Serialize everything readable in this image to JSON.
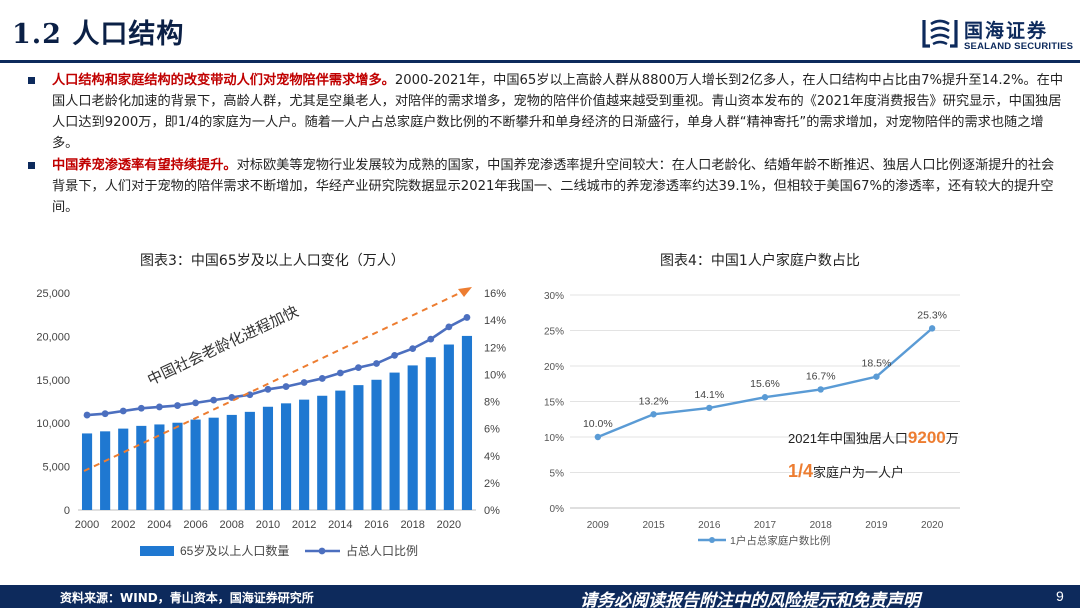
{
  "header": {
    "section_number": "1.2",
    "section_title": "人口结构",
    "logo_cn": "国海证券",
    "logo_en": "SEALAND SECURITIES"
  },
  "bullets": [
    {
      "lead": "人口结构和家庭结构的改变带动人们对宠物陪伴需求增多。",
      "body": "2000-2021年，中国65岁以上高龄人群从8800万人增长到2亿多人，在人口结构中占比由7%提升至14.2%。在中国人口老龄化加速的背景下，高龄人群，尤其是空巢老人，对陪伴的需求增多，宠物的陪伴价值越来越受到重视。青山资本发布的《2021年度消费报告》研究显示，中国独居人口达到9200万，即1/4的家庭为一人户。随着一人户占总家庭户数比例的不断攀升和单身经济的日渐盛行，单身人群“精神寄托”的需求增加，对宠物陪伴的需求也随之增多。"
    },
    {
      "lead": "中国养宠渗透率有望持续提升。",
      "body": "对标欧美等宠物行业发展较为成熟的国家，中国养宠渗透率提升空间较大：在人口老龄化、结婚年龄不断推迟、独居人口比例逐渐提升的社会背景下，人们对于宠物的陪伴需求不断增加，华经产业研究院数据显示2021年我国一、二线城市的养宠渗透率约达39.1%，但相较于美国67%的渗透率，还有较大的提升空间。"
    }
  ],
  "chart_data": [
    {
      "type": "bar",
      "title": "图表3：中国65岁及以上人口变化（万人）",
      "annotation": "中国社会老龄化进程加快",
      "x": [
        2000,
        2001,
        2002,
        2003,
        2004,
        2005,
        2006,
        2007,
        2008,
        2009,
        2010,
        2011,
        2012,
        2013,
        2014,
        2015,
        2016,
        2017,
        2018,
        2019,
        2020,
        2021
      ],
      "x_tick_labels": [
        "2000",
        "2002",
        "2004",
        "2006",
        "2008",
        "2010",
        "2012",
        "2014",
        "2016",
        "2018",
        "2020"
      ],
      "series": [
        {
          "name": "65岁及以上人口数量",
          "type": "bar",
          "axis": "left",
          "color": "#1f78d1",
          "values": [
            8821,
            9062,
            9377,
            9692,
            9857,
            10055,
            10419,
            10636,
            10956,
            11307,
            11894,
            12288,
            12714,
            13161,
            13755,
            14386,
            15003,
            15831,
            16658,
            17603,
            19064,
            20056
          ]
        },
        {
          "name": "占总人口比例",
          "type": "line",
          "axis": "right",
          "color": "#4c6fbf",
          "values": [
            7.0,
            7.1,
            7.3,
            7.5,
            7.6,
            7.7,
            7.9,
            8.1,
            8.3,
            8.5,
            8.9,
            9.1,
            9.4,
            9.7,
            10.1,
            10.5,
            10.8,
            11.4,
            11.9,
            12.6,
            13.5,
            14.2
          ]
        }
      ],
      "ylim_left": [
        0,
        25000
      ],
      "yticks_left": [
        "0",
        "5,000",
        "10,000",
        "15,000",
        "20,000",
        "25,000"
      ],
      "ylim_right": [
        0,
        16
      ],
      "yticks_right": [
        "0%",
        "2%",
        "4%",
        "6%",
        "8%",
        "10%",
        "12%",
        "14%",
        "16%"
      ],
      "legend_position": "bottom"
    },
    {
      "type": "line",
      "title": "图表4：中国1人户家庭户数占比",
      "categories": [
        "2009",
        "2015",
        "2016",
        "2017",
        "2018",
        "2019",
        "2020"
      ],
      "series": [
        {
          "name": "1户占总家庭户数比例",
          "color": "#5a9bd5",
          "values": [
            10.0,
            13.2,
            14.1,
            15.6,
            16.7,
            18.5,
            25.3
          ],
          "labels": [
            "10.0%",
            "13.2%",
            "14.1%",
            "15.6%",
            "16.7%",
            "18.5%",
            "25.3%"
          ]
        }
      ],
      "ylim": [
        0,
        30
      ],
      "yticks": [
        "0%",
        "5%",
        "10%",
        "15%",
        "20%",
        "25%",
        "30%"
      ],
      "grid": true,
      "legend_position": "bottom",
      "annotation_line1_pre": "2021年中国独居人口",
      "annotation_line1_num": "9200",
      "annotation_line1_post": "万",
      "annotation_line2_num": "1/4",
      "annotation_line2_post": "家庭户为一人户",
      "accent_color": "#ed7d31"
    }
  ],
  "footer": {
    "source": "资料来源：WIND，青山资本，国海证券研究所",
    "disclaimer": "请务必阅读报告附注中的风险提示和免责声明",
    "page_number": "9"
  }
}
